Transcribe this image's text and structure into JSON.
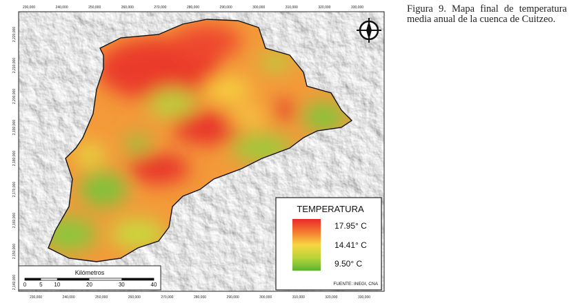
{
  "caption": "Figura 9. Mapa final de temperatura media anual de la cuenca de Cuitzeo.",
  "grid_labels": {
    "x": [
      "230,000",
      "240,000",
      "250,000",
      "260,000",
      "270,000",
      "280,000",
      "290,000",
      "300,000",
      "310,000",
      "320,000",
      "330,000"
    ],
    "y": [
      "2,220,000",
      "2,210,000",
      "2,200,000",
      "2,190,000",
      "2,180,000",
      "2,170,000",
      "2,160,000",
      "2,150,000",
      "2,140,000"
    ]
  },
  "legend": {
    "title": "TEMPERATURA",
    "labels": [
      "17.95° C",
      "14.41° C",
      "9.50° C"
    ],
    "source": "FUENTE: INEGI, CNA"
  },
  "scale_bar": {
    "title": "Kilómetros",
    "ticks": [
      "0",
      "5",
      "10",
      "20",
      "30",
      "40"
    ]
  }
}
